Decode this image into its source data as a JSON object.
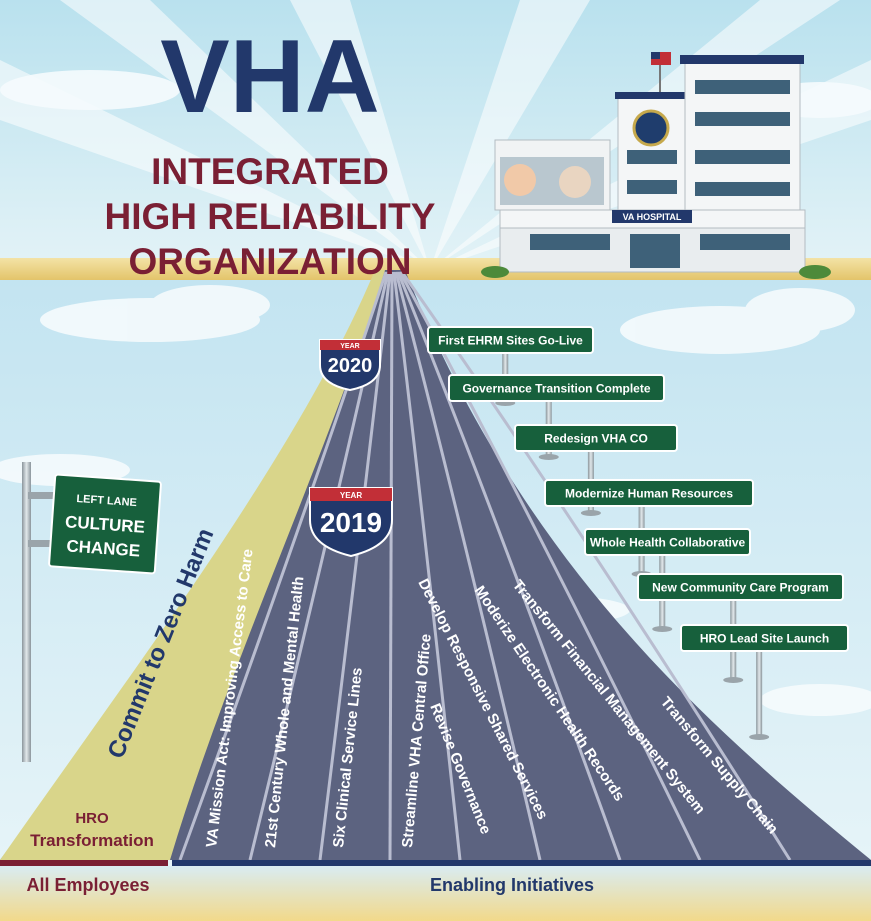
{
  "title": {
    "main": "VHA",
    "line1": "INTEGRATED",
    "line2": "HIGH RELIABILITY",
    "line3": "ORGANIZATION"
  },
  "hospital": {
    "label": "VA HOSPITAL"
  },
  "culture_sign": {
    "small": "LEFT LANE",
    "line1": "CULTURE",
    "line2": "CHANGE"
  },
  "shields": [
    {
      "year_label": "YEAR",
      "year": "2020"
    },
    {
      "year_label": "YEAR",
      "year": "2019"
    }
  ],
  "left_lane": {
    "label": "Commit to Zero Harm",
    "bottom_line1": "HRO",
    "bottom_line2": "Transformation"
  },
  "lanes": [
    "VA Mission Act: Improving Access to Care",
    "21st Century Whole and Mental Health",
    "Six Clinical Service Lines",
    "Streamline VHA Central Office",
    "Revise Governance",
    "Develop Responsive Shared Services",
    "Moderize Electronic Health Records",
    "Transform Financial Management System",
    "Transform Supply Chain"
  ],
  "milestones": [
    "First EHRM Sites Go-Live",
    "Governance Transition Complete",
    "Redesign VHA CO",
    "Modernize Human Resources",
    "Whole Health Collaborative",
    "New Community Care Program",
    "HRO Lead Site Launch"
  ],
  "footer": {
    "left": "All Employees",
    "right": "Enabling Initiatives"
  },
  "colors": {
    "navy": "#22386b",
    "maroon": "#7a1f34",
    "sign_green": "#17603c",
    "left_lane": "#d9d58a",
    "sky": "#cde9f2"
  }
}
